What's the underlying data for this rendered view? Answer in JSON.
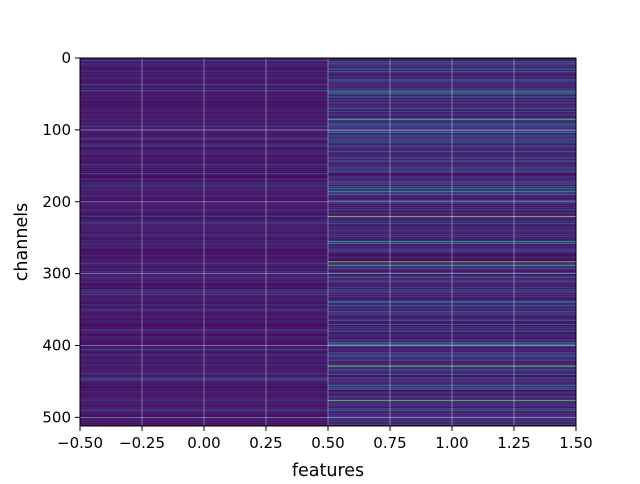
{
  "chart_data": {
    "type": "heatmap",
    "title": "",
    "xlabel": "features",
    "ylabel": "channels",
    "xlim": [
      -0.5,
      1.5
    ],
    "ylim": [
      512,
      0
    ],
    "x_ticks": [
      -0.5,
      -0.25,
      0.0,
      0.25,
      0.5,
      0.75,
      1.0,
      1.25,
      1.5
    ],
    "x_tick_labels": [
      "−0.50",
      "−0.25",
      "0.00",
      "0.25",
      "0.50",
      "0.75",
      "1.00",
      "1.25",
      "1.50"
    ],
    "y_ticks": [
      0,
      100,
      200,
      300,
      400,
      500
    ],
    "y_tick_labels": [
      "0",
      "100",
      "200",
      "300",
      "400",
      "500"
    ],
    "grid": true,
    "colormap": "viridis",
    "n_rows": 512,
    "columns": [
      {
        "x_center": 0,
        "base_value": 0.1,
        "bands": [
          {
            "row": 45,
            "value": 0.4
          },
          {
            "row": 112,
            "value": 0.4
          },
          {
            "row": 160,
            "value": 0.3
          },
          {
            "row": 175,
            "value": 0.3
          },
          {
            "row": 285,
            "value": 0.3
          },
          {
            "row": 378,
            "value": 0.35
          },
          {
            "row": 405,
            "value": 0.3
          },
          {
            "row": 445,
            "value": 0.3
          },
          {
            "row": 490,
            "value": 0.3
          }
        ]
      },
      {
        "x_center": 1,
        "base_value": 0.15,
        "bands": [
          {
            "row": 8,
            "value": 0.5
          },
          {
            "row": 18,
            "value": 0.4
          },
          {
            "row": 30,
            "value": 0.4
          },
          {
            "row": 45,
            "value": 0.6
          },
          {
            "row": 47,
            "value": 0.7
          },
          {
            "row": 58,
            "value": 0.4
          },
          {
            "row": 70,
            "value": 0.4
          },
          {
            "row": 85,
            "value": 0.8
          },
          {
            "row": 100,
            "value": 0.5
          },
          {
            "row": 103,
            "value": 0.6
          },
          {
            "row": 115,
            "value": 0.5
          },
          {
            "row": 130,
            "value": 0.4
          },
          {
            "row": 175,
            "value": 0.45
          },
          {
            "row": 185,
            "value": 0.7
          },
          {
            "row": 190,
            "value": 0.6
          },
          {
            "row": 198,
            "value": 0.5
          },
          {
            "row": 210,
            "value": 0.4
          },
          {
            "row": 220,
            "value": 0.9
          },
          {
            "row": 240,
            "value": 0.4
          },
          {
            "row": 255,
            "value": 0.75
          },
          {
            "row": 258,
            "value": 0.7
          },
          {
            "row": 283,
            "value": 0.9
          },
          {
            "row": 288,
            "value": 0.8
          },
          {
            "row": 292,
            "value": 0.55
          },
          {
            "row": 305,
            "value": 0.45
          },
          {
            "row": 325,
            "value": 0.4
          },
          {
            "row": 340,
            "value": 0.45
          },
          {
            "row": 352,
            "value": 0.4
          },
          {
            "row": 370,
            "value": 0.5
          },
          {
            "row": 380,
            "value": 0.4
          },
          {
            "row": 398,
            "value": 0.5
          },
          {
            "row": 415,
            "value": 0.4
          },
          {
            "row": 428,
            "value": 0.9
          },
          {
            "row": 440,
            "value": 0.5
          },
          {
            "row": 455,
            "value": 0.55
          },
          {
            "row": 460,
            "value": 0.5
          },
          {
            "row": 476,
            "value": 0.85
          },
          {
            "row": 490,
            "value": 0.4
          },
          {
            "row": 505,
            "value": 0.4
          }
        ]
      }
    ]
  }
}
